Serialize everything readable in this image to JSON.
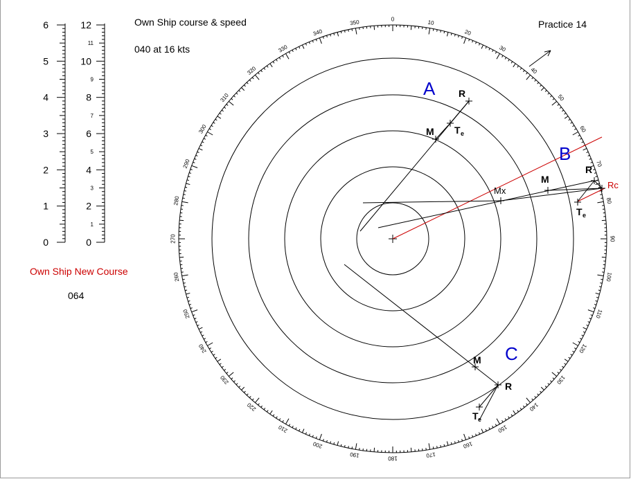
{
  "header": {
    "own_ship_title": "Own Ship course & speed",
    "own_ship_value": "040  at 16 kts",
    "practice": "Practice  14"
  },
  "new_course": {
    "label": "Own Ship New Course",
    "value": "064"
  },
  "scales": {
    "left_major": [
      "0",
      "1",
      "2",
      "3",
      "4",
      "5",
      "6"
    ],
    "right_major": [
      "0",
      "2",
      "4",
      "6",
      "8",
      "10",
      "12"
    ],
    "right_minor": [
      "1",
      "3",
      "5",
      "7",
      "9",
      "11"
    ]
  },
  "compass": {
    "degree_labels": [
      "0",
      "10",
      "20",
      "30",
      "40",
      "50",
      "60",
      "70",
      "80",
      "90",
      "100",
      "110",
      "120",
      "130",
      "140",
      "150",
      "160",
      "170",
      "180",
      "190",
      "200",
      "210",
      "220",
      "230",
      "240",
      "250",
      "260",
      "270",
      "280",
      "290",
      "300",
      "310",
      "320",
      "330",
      "340",
      "350"
    ]
  },
  "cases": {
    "a": "A",
    "b": "B",
    "c": "C"
  },
  "points": {
    "r": "R",
    "m": "M",
    "t": "T",
    "t_sub": "e",
    "mx": "Mx",
    "rc": "Rc"
  },
  "colors": {
    "accent_red": "#cc0000",
    "case_blue": "#0000cc"
  }
}
